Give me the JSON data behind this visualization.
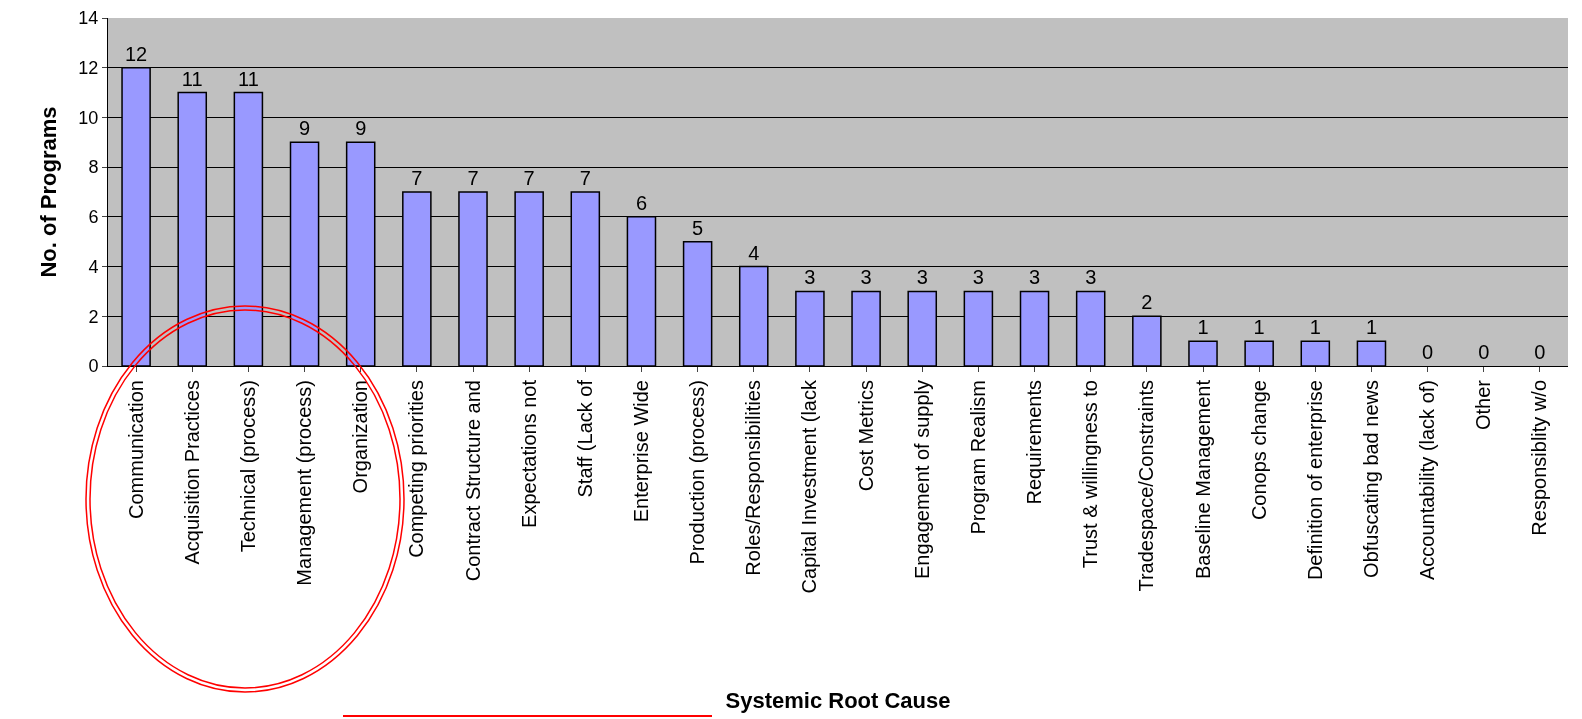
{
  "chart_data": {
    "type": "bar",
    "xlabel": "Systemic Root Cause",
    "ylabel": "No. of Programs",
    "categories": [
      "Communication",
      "Acquisition Practices",
      "Technical (process)",
      "Management (process)",
      "Organization",
      "Competing priorities",
      "Contract Structure and",
      "Expectations not",
      "Staff (Lack of",
      "Enterprise Wide",
      "Production (process)",
      "Roles/Responsibilities",
      "Capital Investment (lack",
      "Cost Metrics",
      "Engagement of supply",
      "Program Realism",
      "Requirements",
      "Trust & willingness to",
      "Tradespace/Constraints",
      "Baseline Management",
      "Conops change",
      "Definition of enterprise",
      "Obfuscating bad news",
      "Accountability (lack of)",
      "Other",
      "Responsiblity w/o"
    ],
    "values": [
      12,
      11,
      11,
      9,
      9,
      7,
      7,
      7,
      7,
      6,
      5,
      4,
      3,
      3,
      3,
      3,
      3,
      3,
      2,
      1,
      1,
      1,
      1,
      0,
      0,
      0
    ],
    "color": "#9999ff",
    "ylim": [
      0,
      14
    ],
    "yticks": [
      0,
      2,
      4,
      6,
      8,
      10,
      12,
      14
    ],
    "grid": "y",
    "data_labels": true
  }
}
